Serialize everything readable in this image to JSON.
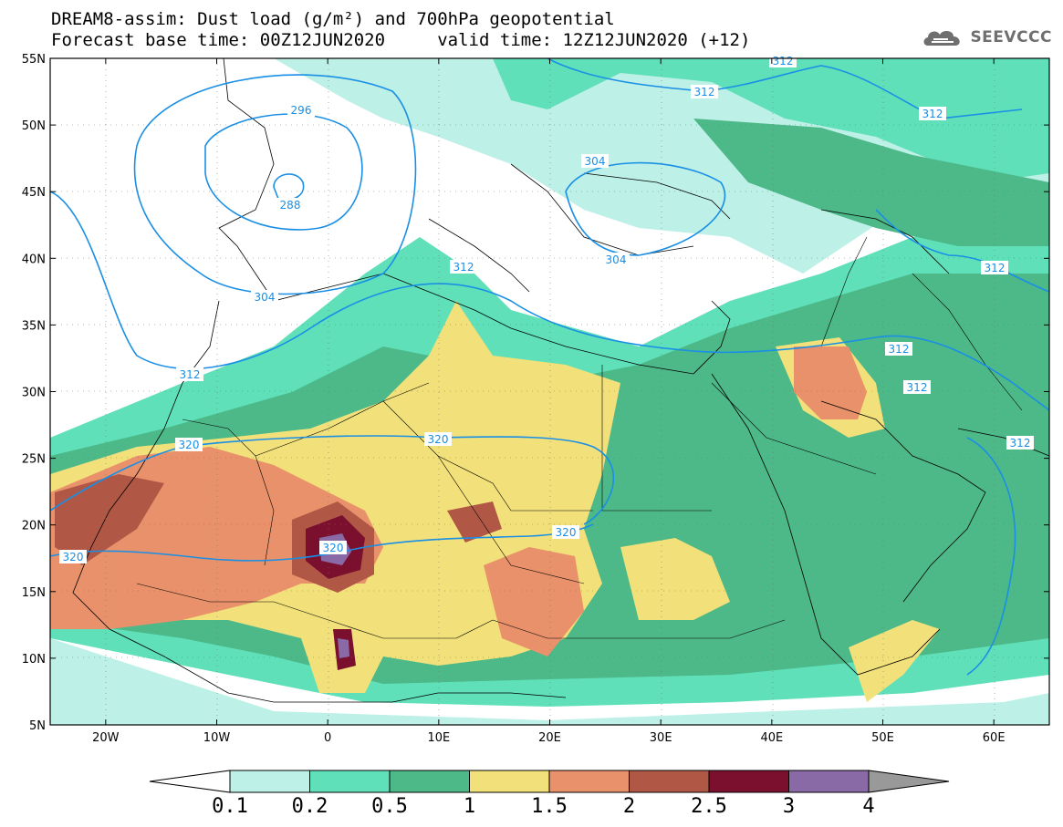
{
  "header": {
    "title_line1": "DREAM8-assim: Dust load (g/m²) and 700hPa geopotential",
    "title_line2": "Forecast base time: 00Z12JUN2020     valid time: 12Z12JUN2020 (+12)"
  },
  "logo": {
    "text": "SEEVCCC",
    "icon": "cloud-logo-icon"
  },
  "map": {
    "lat_labels": [
      "55N",
      "50N",
      "45N",
      "40N",
      "35N",
      "30N",
      "25N",
      "20N",
      "15N",
      "10N",
      "5N"
    ],
    "lon_labels": [
      "20W",
      "10W",
      "0",
      "10E",
      "20E",
      "30E",
      "40E",
      "50E",
      "60E"
    ],
    "contour_labels": [
      {
        "text": "296"
      },
      {
        "text": "288"
      },
      {
        "text": "304"
      },
      {
        "text": "304"
      },
      {
        "text": "304"
      },
      {
        "text": "312"
      },
      {
        "text": "312"
      },
      {
        "text": "312"
      },
      {
        "text": "312"
      },
      {
        "text": "312"
      },
      {
        "text": "312"
      },
      {
        "text": "312"
      },
      {
        "text": "312"
      },
      {
        "text": "312"
      },
      {
        "text": "320"
      },
      {
        "text": "320"
      },
      {
        "text": "320"
      },
      {
        "text": "320"
      },
      {
        "text": "320"
      }
    ],
    "colors": {
      "c01": "#bdf0e6",
      "c02": "#5fe0b8",
      "c05": "#4db888",
      "c1": "#f2e17a",
      "c15": "#e8916a",
      "c2": "#b05745",
      "c25": "#7a0f2e",
      "c3": "#8a6aa6",
      "contour": "#1a8fe6",
      "coast": "#000000"
    }
  },
  "colorbar": {
    "labels": [
      "0.1",
      "0.2",
      "0.5",
      "1",
      "1.5",
      "2",
      "2.5",
      "3",
      "4"
    ],
    "colors": [
      "#bdf0e6",
      "#5fe0b8",
      "#4db888",
      "#f2e17a",
      "#e8916a",
      "#b05745",
      "#7a0f2e",
      "#8a6aa6"
    ],
    "over_color": "#999999",
    "under_color": "#ffffff"
  }
}
